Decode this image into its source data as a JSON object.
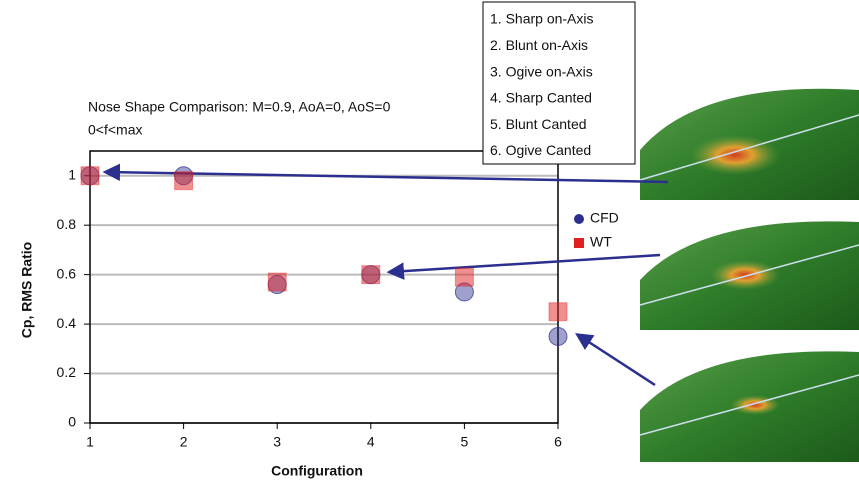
{
  "chart_data": {
    "type": "scatter",
    "title": "Nose Shape Comparison: M=0.9, AoA=0, AoS=0",
    "subtitle": "0<f<max",
    "x_label": "Configuration",
    "y_label": "Cp, RMS Ratio",
    "annotations": [
      "1. Sharp on-Axis",
      "2. Blunt on-Axis",
      "3. Ogive on-Axis",
      "4. Sharp Canted",
      "5. Blunt Canted",
      "6. Ogive Canted"
    ],
    "x": [
      1,
      2,
      3,
      4,
      5,
      6
    ],
    "series": [
      {
        "name": "CFD",
        "color": "#2b2f8f",
        "marker": "circle",
        "values": [
          1.0,
          1.0,
          0.56,
          0.6,
          0.53,
          0.35
        ]
      },
      {
        "name": "WT",
        "color": "#e02020",
        "marker": "square",
        "values": [
          1.0,
          0.98,
          0.57,
          0.6,
          0.59,
          0.45
        ]
      }
    ],
    "xlim": [
      1,
      6
    ],
    "xticks": [
      1,
      2,
      3,
      4,
      5,
      6
    ],
    "ylim": [
      0,
      1.1
    ],
    "yticks": [
      0,
      0.2,
      0.4,
      0.6,
      0.8,
      1
    ],
    "grid": true
  }
}
